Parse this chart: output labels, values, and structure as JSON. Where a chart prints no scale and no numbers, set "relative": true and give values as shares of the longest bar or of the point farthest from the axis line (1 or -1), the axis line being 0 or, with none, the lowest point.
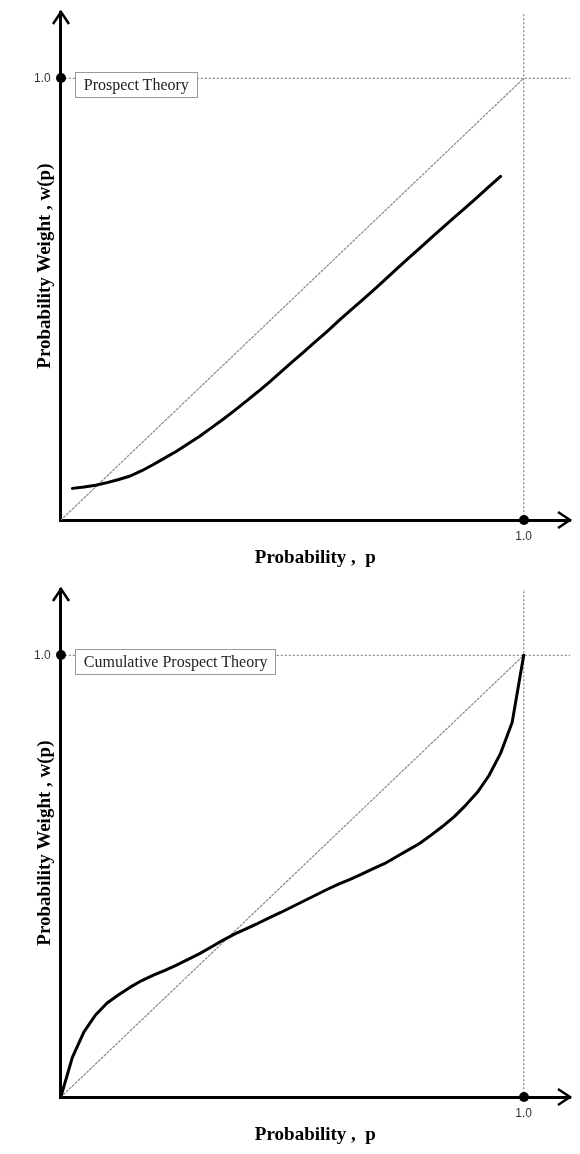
{
  "chart_data": [
    {
      "type": "line",
      "title": "Prospect Theory",
      "xlabel": "Probability ,  p",
      "ylabel": "Probability Weight , w(p)",
      "relative": true,
      "marker": "none",
      "categories": [
        null,
        null,
        null,
        null,
        null,
        null,
        null,
        null,
        null,
        null,
        null,
        null,
        null,
        null,
        null,
        null,
        null,
        null,
        null,
        null,
        null,
        null,
        null,
        null,
        null,
        null,
        null,
        null,
        null,
        null,
        null,
        null,
        null,
        null,
        null,
        null,
        null,
        null,
        null,
        null,
        null
      ],
      "series": [
        {
          "color": "#000000",
          "line_style": "solid",
          "values": [
            null,
            0.072,
            0.075,
            0.079,
            0.085,
            0.092,
            0.1,
            0.112,
            0.126,
            0.141,
            0.156,
            0.173,
            0.19,
            0.209,
            0.228,
            0.248,
            0.269,
            0.29,
            0.312,
            0.335,
            0.358,
            0.381,
            0.404,
            0.427,
            0.451,
            0.474,
            0.497,
            0.52,
            0.544,
            0.568,
            0.592,
            0.615,
            0.639,
            0.662,
            0.685,
            0.708,
            0.731,
            0.755,
            0.778,
            null,
            null
          ]
        },
        {
          "color": "#888888",
          "line_style": "dotted",
          "values": [
            0,
            0.025,
            0.05,
            0.075,
            0.1,
            0.125,
            0.15,
            0.175,
            0.2,
            0.225,
            0.25,
            0.275,
            0.3,
            0.325,
            0.35,
            0.375,
            0.4,
            0.425,
            0.45,
            0.475,
            0.5,
            0.525,
            0.55,
            0.575,
            0.6,
            0.625,
            0.65,
            0.675,
            0.7,
            0.725,
            0.75,
            0.775,
            0.8,
            0.825,
            0.85,
            0.875,
            0.9,
            0.925,
            0.95,
            0.975,
            1
          ]
        }
      ],
      "ref_lines": [
        {
          "axis": "y",
          "value": 1,
          "label": "1.0",
          "color": "#888888",
          "line_style": "dotted"
        },
        {
          "axis": "x",
          "label": "1.0",
          "color": "#888888",
          "line_style": "dotted"
        }
      ]
    },
    {
      "type": "line",
      "title": "Cumulative Prospect Theory",
      "xlabel": "Probability ,  p",
      "ylabel": "Probability Weight , w(p)",
      "relative": true,
      "marker": "none",
      "categories": [
        null,
        null,
        null,
        null,
        null,
        null,
        null,
        null,
        null,
        null,
        null,
        null,
        null,
        null,
        null,
        null,
        null,
        null,
        null,
        null,
        null,
        null,
        null,
        null,
        null,
        null,
        null,
        null,
        null,
        null,
        null,
        null,
        null,
        null,
        null,
        null,
        null,
        null,
        null,
        null,
        null
      ],
      "series": [
        {
          "color": "#000000",
          "line_style": "solid",
          "values": [
            0,
            0.09,
            0.148,
            0.186,
            0.213,
            0.232,
            0.249,
            0.264,
            0.276,
            0.287,
            0.299,
            0.312,
            0.325,
            0.34,
            0.355,
            0.369,
            0.381,
            0.393,
            0.406,
            0.418,
            0.431,
            0.444,
            0.457,
            0.47,
            0.482,
            0.493,
            0.505,
            0.517,
            0.529,
            0.544,
            0.559,
            0.574,
            0.593,
            0.613,
            0.635,
            0.661,
            0.69,
            0.728,
            0.778,
            0.848,
            1
          ]
        },
        {
          "color": "#888888",
          "line_style": "dotted",
          "values": [
            0,
            0.025,
            0.05,
            0.075,
            0.1,
            0.125,
            0.15,
            0.175,
            0.2,
            0.225,
            0.25,
            0.275,
            0.3,
            0.325,
            0.35,
            0.375,
            0.4,
            0.425,
            0.45,
            0.475,
            0.5,
            0.525,
            0.55,
            0.575,
            0.6,
            0.625,
            0.65,
            0.675,
            0.7,
            0.725,
            0.75,
            0.775,
            0.8,
            0.825,
            0.85,
            0.875,
            0.9,
            0.925,
            0.95,
            0.975,
            1
          ]
        }
      ],
      "ref_lines": [
        {
          "axis": "y",
          "value": 1,
          "label": "1.0",
          "color": "#888888",
          "line_style": "dotted"
        },
        {
          "axis": "x",
          "label": "1.0",
          "color": "#888888",
          "line_style": "dotted"
        }
      ]
    }
  ]
}
